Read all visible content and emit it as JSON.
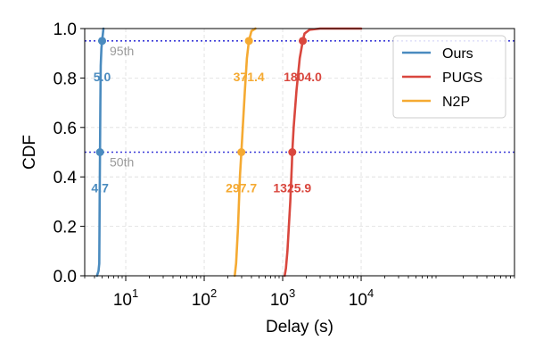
{
  "chart_data": {
    "type": "line",
    "title": "",
    "xlabel": "Delay (s)",
    "ylabel": "CDF",
    "x_scale": "log",
    "xlim": [
      3,
      900000
    ],
    "ylim": [
      0,
      1.0
    ],
    "x_ticks": [
      {
        "value": 10,
        "base": "10",
        "exp": "1"
      },
      {
        "value": 100,
        "base": "10",
        "exp": "2"
      },
      {
        "value": 1000,
        "base": "10",
        "exp": "3"
      },
      {
        "value": 10000,
        "base": "10",
        "exp": "4"
      }
    ],
    "y_ticks": [
      {
        "value": 0.0,
        "label": "0.0"
      },
      {
        "value": 0.2,
        "label": "0.2"
      },
      {
        "value": 0.4,
        "label": "0.4"
      },
      {
        "value": 0.6,
        "label": "0.6"
      },
      {
        "value": 0.8,
        "label": "0.8"
      },
      {
        "value": 1.0,
        "label": "1.0"
      }
    ],
    "grid": true,
    "legend_position": "top-right",
    "percentile_lines": [
      {
        "y": 0.95,
        "label": "95th"
      },
      {
        "y": 0.5,
        "label": "50th"
      }
    ],
    "series": [
      {
        "name": "Ours",
        "color": "#4a8bbf",
        "x": [
          4.3,
          4.5,
          4.6,
          4.65,
          4.7,
          4.75,
          4.8,
          4.9,
          5.0,
          5.2
        ],
        "y": [
          0.0,
          0.02,
          0.05,
          0.3,
          0.5,
          0.7,
          0.85,
          0.92,
          0.95,
          1.0
        ],
        "markers": [
          {
            "x": 4.7,
            "y": 0.5,
            "label": "4.7"
          },
          {
            "x": 5.0,
            "y": 0.95,
            "label": "5.0"
          }
        ]
      },
      {
        "name": "PUGS",
        "color": "#d9473e",
        "x": [
          1060,
          1100,
          1150,
          1250,
          1310,
          1325.9,
          1380,
          1500,
          1650,
          1804,
          1900,
          2200,
          3000,
          5000,
          10000
        ],
        "y": [
          0.0,
          0.03,
          0.1,
          0.3,
          0.45,
          0.5,
          0.6,
          0.75,
          0.88,
          0.95,
          0.98,
          0.995,
          1.0,
          1.0,
          1.0
        ],
        "markers": [
          {
            "x": 1325.9,
            "y": 0.5,
            "label": "1325.9"
          },
          {
            "x": 1804.0,
            "y": 0.95,
            "label": "1804.0"
          }
        ]
      },
      {
        "name": "N2P",
        "color": "#f5aa32",
        "x": [
          245,
          255,
          270,
          285,
          297.7,
          310,
          330,
          350,
          371.4,
          400,
          450
        ],
        "y": [
          0.0,
          0.05,
          0.2,
          0.4,
          0.5,
          0.6,
          0.75,
          0.88,
          0.95,
          0.99,
          1.0
        ],
        "markers": [
          {
            "x": 297.7,
            "y": 0.5,
            "label": "297.7"
          },
          {
            "x": 371.4,
            "y": 0.95,
            "label": "371.4"
          }
        ]
      }
    ]
  }
}
